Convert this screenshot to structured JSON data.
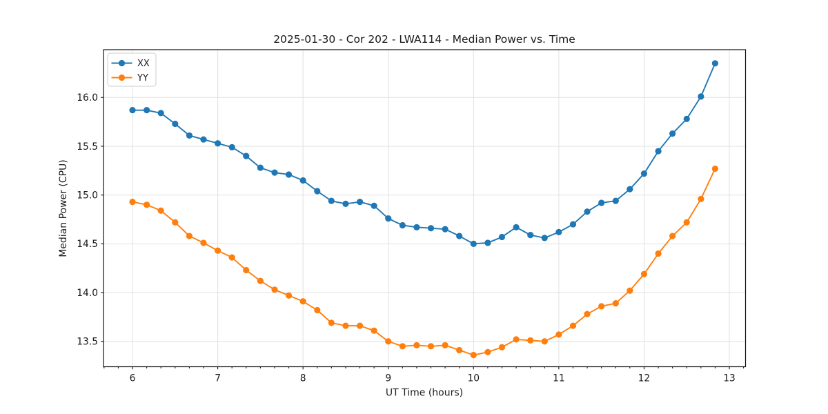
{
  "chart_data": {
    "type": "line",
    "title": "2025-01-30 - Cor 202 - LWA114 - Median Power vs. Time",
    "xlabel": "UT Time (hours)",
    "ylabel": "Median Power (CPU)",
    "xlim": [
      5.66,
      13.19
    ],
    "ylim": [
      13.24,
      16.49
    ],
    "xtick_values": [
      6,
      7,
      8,
      9,
      10,
      11,
      12,
      13
    ],
    "xtick_labels": [
      "6",
      "7",
      "8",
      "9",
      "10",
      "11",
      "12",
      "13"
    ],
    "ytick_values": [
      13.5,
      14.0,
      14.5,
      15.0,
      15.5,
      16.0
    ],
    "ytick_labels": [
      "13.5",
      "14.0",
      "14.5",
      "15.0",
      "15.5",
      "16.0"
    ],
    "x_minor_interval": 0.1666667,
    "grid": true,
    "legend_position": "upper-left",
    "x": [
      6.0,
      6.167,
      6.333,
      6.5,
      6.667,
      6.833,
      7.0,
      7.167,
      7.333,
      7.5,
      7.667,
      7.833,
      8.0,
      8.167,
      8.333,
      8.5,
      8.667,
      8.833,
      9.0,
      9.167,
      9.333,
      9.5,
      9.667,
      9.833,
      10.0,
      10.167,
      10.333,
      10.5,
      10.667,
      10.833,
      11.0,
      11.167,
      11.333,
      11.5,
      11.667,
      11.833,
      12.0,
      12.167,
      12.333,
      12.5,
      12.667,
      12.833
    ],
    "series": [
      {
        "name": "XX",
        "color": "#1f77b4",
        "values": [
          15.87,
          15.87,
          15.84,
          15.73,
          15.61,
          15.57,
          15.53,
          15.49,
          15.4,
          15.28,
          15.23,
          15.21,
          15.15,
          15.04,
          14.94,
          14.91,
          14.93,
          14.89,
          14.76,
          14.69,
          14.67,
          14.66,
          14.65,
          14.58,
          14.5,
          14.51,
          14.57,
          14.67,
          14.59,
          14.56,
          14.62,
          14.7,
          14.83,
          14.92,
          14.94,
          15.06,
          15.22,
          15.45,
          15.63,
          15.78,
          16.01,
          16.35
        ]
      },
      {
        "name": "YY",
        "color": "#ff7f0e",
        "values": [
          14.93,
          14.9,
          14.84,
          14.72,
          14.58,
          14.51,
          14.43,
          14.36,
          14.23,
          14.12,
          14.03,
          13.97,
          13.91,
          13.82,
          13.69,
          13.66,
          13.66,
          13.61,
          13.5,
          13.45,
          13.46,
          13.45,
          13.46,
          13.41,
          13.36,
          13.39,
          13.44,
          13.52,
          13.51,
          13.5,
          13.57,
          13.66,
          13.78,
          13.86,
          13.89,
          14.02,
          14.19,
          14.4,
          14.58,
          14.72,
          14.96,
          15.27
        ]
      }
    ]
  }
}
